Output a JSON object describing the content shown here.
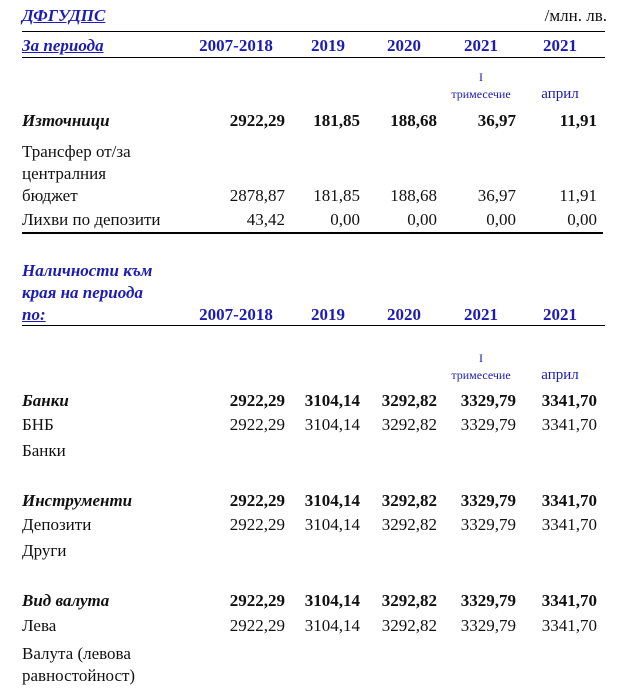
{
  "header": {
    "title": "ДФГУДПС",
    "unit": "/млн. лв."
  },
  "table1": {
    "heading": [
      "За периода"
    ],
    "columns": [
      "2007-2018",
      "2019",
      "2020",
      "2021",
      "2021"
    ],
    "quarter_note": [
      "I",
      "тримесечие"
    ],
    "month_note": "април",
    "rows": [
      {
        "label": [
          "Източници"
        ],
        "bold": true,
        "values": [
          "2922,29",
          "181,85",
          "188,68",
          "36,97",
          "11,91"
        ]
      },
      {
        "label": [
          "Трансфер от/за",
          "централния",
          "бюджет"
        ],
        "bold": false,
        "values": [
          "2878,87",
          "181,85",
          "188,68",
          "36,97",
          "11,91"
        ]
      },
      {
        "label": [
          "Лихви по депозити"
        ],
        "bold": false,
        "values": [
          "43,42",
          "0,00",
          "0,00",
          "0,00",
          "0,00"
        ]
      }
    ]
  },
  "table2": {
    "heading": [
      "Наличности към",
      "края на периода",
      "по:"
    ],
    "columns": [
      "2007-2018",
      "2019",
      "2020",
      "2021",
      "2021"
    ],
    "quarter_note": [
      "I",
      "тримесечие"
    ],
    "month_note": "април",
    "rows": [
      {
        "label": [
          "Банки"
        ],
        "bold": true,
        "values": [
          "2922,29",
          "3104,14",
          "3292,82",
          "3329,79",
          "3341,70"
        ]
      },
      {
        "label": [
          "БНБ"
        ],
        "bold": false,
        "values": [
          "2922,29",
          "3104,14",
          "3292,82",
          "3329,79",
          "3341,70"
        ]
      },
      {
        "label": [
          "Банки"
        ],
        "bold": false,
        "values": []
      },
      {
        "label": [
          "Инструменти"
        ],
        "bold": true,
        "values": [
          "2922,29",
          "3104,14",
          "3292,82",
          "3329,79",
          "3341,70"
        ]
      },
      {
        "label": [
          "Депозити"
        ],
        "bold": false,
        "values": [
          "2922,29",
          "3104,14",
          "3292,82",
          "3329,79",
          "3341,70"
        ]
      },
      {
        "label": [
          "Други"
        ],
        "bold": false,
        "values": []
      },
      {
        "label": [
          "Вид валута"
        ],
        "bold": true,
        "values": [
          "2922,29",
          "3104,14",
          "3292,82",
          "3329,79",
          "3341,70"
        ]
      },
      {
        "label": [
          "Лева"
        ],
        "bold": false,
        "values": [
          "2922,29",
          "3104,14",
          "3292,82",
          "3329,79",
          "3341,70"
        ]
      },
      {
        "label": [
          "Валута (левова",
          "равностойност)"
        ],
        "bold": false,
        "values": []
      }
    ]
  }
}
